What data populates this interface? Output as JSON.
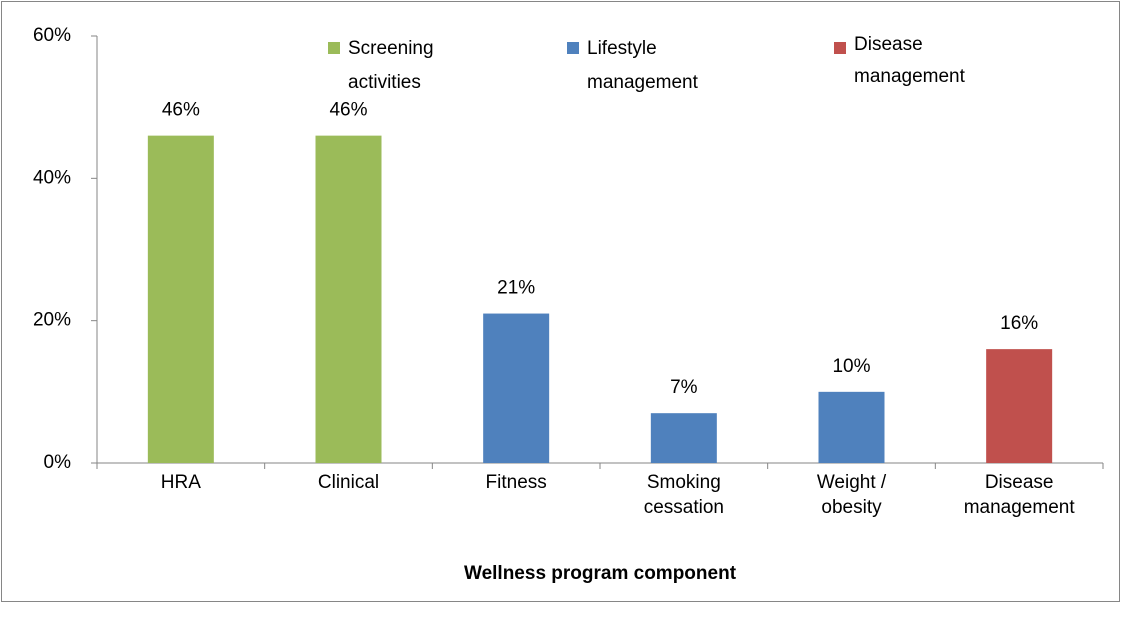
{
  "chart_data": {
    "type": "bar",
    "x_label": "Wellness program component",
    "categories": [
      "HRA",
      "Clinical",
      "Fitness",
      "Smoking cessation",
      "Weight / obesity",
      "Disease management"
    ],
    "series": [
      {
        "name": "Screening activities",
        "color": "#9bbb59",
        "values": [
          46,
          46,
          null,
          null,
          null,
          null
        ],
        "value_labels": [
          "46%",
          "46%",
          null,
          null,
          null,
          null
        ]
      },
      {
        "name": "Lifestyle management",
        "color": "#4f81bd",
        "values": [
          null,
          null,
          21,
          7,
          10,
          null
        ],
        "value_labels": [
          null,
          null,
          "21%",
          "7%",
          "10%",
          null
        ]
      },
      {
        "name": "Disease management",
        "color": "#c0504d",
        "values": [
          null,
          null,
          null,
          null,
          null,
          16
        ],
        "value_labels": [
          null,
          null,
          null,
          null,
          null,
          "16%"
        ]
      }
    ],
    "ylim": [
      0,
      60
    ],
    "yticks": [
      {
        "value": 0,
        "label": "0%"
      },
      {
        "value": 20,
        "label": "20%"
      },
      {
        "value": 40,
        "label": "40%"
      },
      {
        "value": 60,
        "label": "60%"
      }
    ],
    "grid": false,
    "legend": "top"
  }
}
